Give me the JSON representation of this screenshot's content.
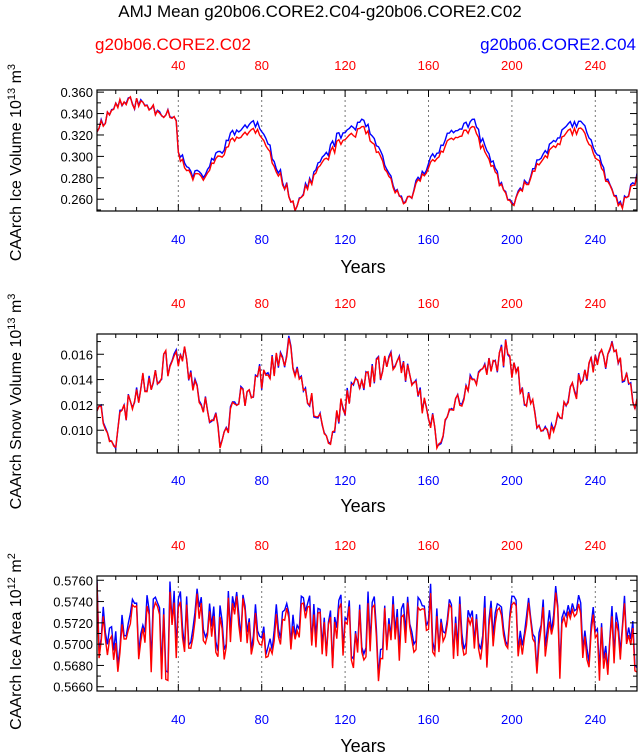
{
  "title": "AMJ Mean g20b06.CORE2.C04-g20b06.CORE2.C02",
  "legend": {
    "left_label": "g20b06.CORE2.C02",
    "right_label": "g20b06.CORE2.C04",
    "left_color": "#ff0000",
    "right_color": "#0000ff"
  },
  "chart_data": [
    {
      "type": "line",
      "id": "ice_volume",
      "ylabel": "CAArch Ice Volume 10^13 m^3",
      "ylabel_text": "CAArch Ice Volume 10",
      "ylabel_exp": "13",
      "ylabel_unit": "m",
      "ylabel_unit_exp": "3",
      "xlabel": "Years",
      "xlim": [
        1,
        260
      ],
      "ylim": [
        0.249,
        0.362
      ],
      "yticks": [
        "0.260",
        "0.280",
        "0.300",
        "0.320",
        "0.340",
        "0.360"
      ],
      "ytick_values": [
        0.26,
        0.28,
        0.3,
        0.32,
        0.34,
        0.36
      ],
      "xticks": [
        40,
        80,
        120,
        160,
        200,
        240
      ],
      "gen": {
        "kind": "icevol",
        "seed": 11
      },
      "series": [
        {
          "name": "g20b06.CORE2.C02",
          "color": "#ff0000"
        },
        {
          "name": "g20b06.CORE2.C04",
          "color": "#0000ff"
        }
      ]
    },
    {
      "type": "line",
      "id": "snow_volume",
      "ylabel": "CAArch Snow Volume 10^13 m^3",
      "ylabel_text": "CAArch Snow Volume 10",
      "ylabel_exp": "13",
      "ylabel_unit": "m",
      "ylabel_unit_exp": "3",
      "xlabel": "Years",
      "xlim": [
        1,
        260
      ],
      "ylim": [
        0.0082,
        0.0176
      ],
      "yticks": [
        "0.010",
        "0.012",
        "0.014",
        "0.016"
      ],
      "ytick_values": [
        0.01,
        0.012,
        0.014,
        0.016
      ],
      "xticks": [
        40,
        80,
        120,
        160,
        200,
        240
      ],
      "gen": {
        "kind": "snow",
        "seed": 23
      },
      "series": [
        {
          "name": "g20b06.CORE2.C02",
          "color": "#ff0000"
        },
        {
          "name": "g20b06.CORE2.C04",
          "color": "#0000ff"
        }
      ]
    },
    {
      "type": "line",
      "id": "ice_area",
      "ylabel": "CAArch Ice Area 10^12 m^2",
      "ylabel_text": "CAArch Ice Area 10",
      "ylabel_exp": "12",
      "ylabel_unit": "m",
      "ylabel_unit_exp": "2",
      "xlabel": "Years",
      "xlim": [
        1,
        260
      ],
      "ylim": [
        0.5656,
        0.5764
      ],
      "yticks": [
        "0.5660",
        "0.5680",
        "0.5700",
        "0.5720",
        "0.5740",
        "0.5760"
      ],
      "ytick_values": [
        0.566,
        0.568,
        0.57,
        0.572,
        0.574,
        0.576
      ],
      "xticks": [
        40,
        80,
        120,
        160,
        200,
        240
      ],
      "gen": {
        "kind": "area",
        "seed": 37
      },
      "series": [
        {
          "name": "g20b06.CORE2.C02",
          "color": "#ff0000"
        },
        {
          "name": "g20b06.CORE2.C04",
          "color": "#0000ff"
        }
      ]
    }
  ]
}
